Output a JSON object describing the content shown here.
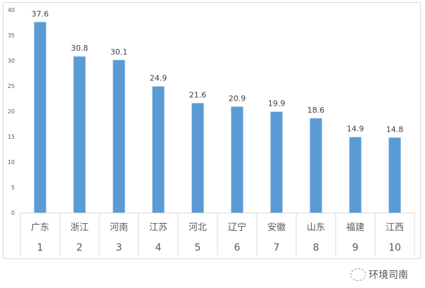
{
  "chart_data": {
    "type": "bar",
    "categories": [
      "广东",
      "浙江",
      "河南",
      "江苏",
      "河北",
      "辽宁",
      "安徽",
      "山东",
      "福建",
      "江西"
    ],
    "ranks": [
      "1",
      "2",
      "3",
      "4",
      "5",
      "6",
      "7",
      "8",
      "9",
      "10"
    ],
    "values": [
      37.6,
      30.8,
      30.1,
      24.9,
      21.6,
      20.9,
      19.9,
      18.6,
      14.9,
      14.8
    ],
    "data_labels": [
      "37.6",
      "30.8",
      "30.1",
      "24.9",
      "21.6",
      "20.9",
      "19.9",
      "18.6",
      "14.9",
      "14.8"
    ],
    "title": "",
    "xlabel": "",
    "ylabel": "",
    "ylim": [
      0,
      40
    ],
    "yticks": [
      "0",
      "5",
      "10",
      "15",
      "20",
      "25",
      "30",
      "35",
      "40"
    ],
    "grid": false,
    "bar_color": "#5b9bd5"
  },
  "watermark": {
    "text": "环境司南"
  }
}
